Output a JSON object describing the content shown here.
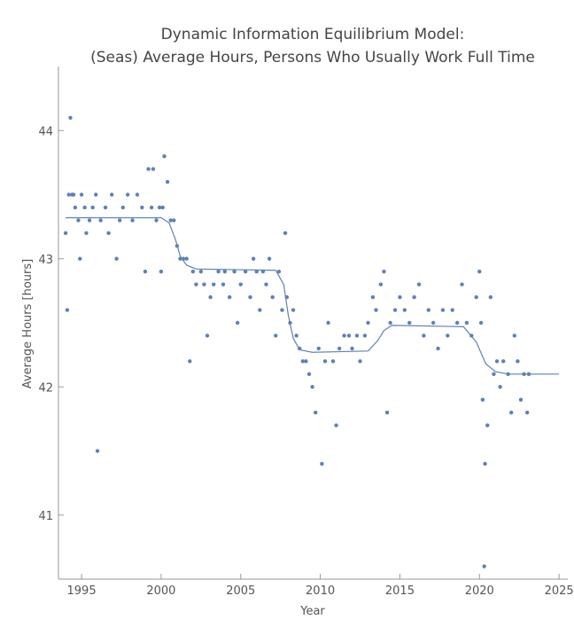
{
  "chart_data": {
    "type": "scatter",
    "title": "Dynamic Information Equilibrium Model:",
    "subtitle": "(Seas) Average Hours, Persons Who Usually Work Full Time",
    "x_label": "Year",
    "y_label": "Average Hours [hours]",
    "xlim": [
      1993.55,
      2025.55
    ],
    "ylim": [
      40.5,
      44.5
    ],
    "xticks": [
      1995,
      2000,
      2005,
      2010,
      2015,
      2020,
      2025
    ],
    "yticks": [
      41,
      42,
      43,
      44
    ],
    "series": [
      {
        "type": "scatter",
        "color": "#5e81b5",
        "x": [
          1994.0,
          1994.1,
          1994.2,
          1994.3,
          1994.4,
          1994.5,
          1994.6,
          1994.8,
          1994.9,
          1995.0,
          1995.2,
          1995.3,
          1995.5,
          1995.7,
          1995.9,
          1996.0,
          1996.2,
          1996.5,
          1996.7,
          1996.9,
          1997.2,
          1997.4,
          1997.6,
          1997.9,
          1998.2,
          1998.5,
          1998.8,
          1999.0,
          1999.2,
          1999.4,
          1999.5,
          1999.7,
          1999.9,
          2000.0,
          2000.1,
          2000.2,
          2000.4,
          2000.6,
          2000.8,
          2001.0,
          2001.2,
          2001.4,
          2001.6,
          2001.8,
          2002.0,
          2002.2,
          2002.5,
          2002.7,
          2002.9,
          2003.1,
          2003.3,
          2003.6,
          2003.9,
          2004.0,
          2004.3,
          2004.6,
          2004.8,
          2005.0,
          2005.3,
          2005.6,
          2005.8,
          2006.0,
          2006.2,
          2006.4,
          2006.6,
          2006.8,
          2007.0,
          2007.2,
          2007.4,
          2007.6,
          2007.8,
          2007.9,
          2008.1,
          2008.3,
          2008.5,
          2008.7,
          2008.9,
          2009.1,
          2009.3,
          2009.5,
          2009.7,
          2009.9,
          2010.1,
          2010.3,
          2010.5,
          2010.8,
          2011.0,
          2011.2,
          2011.5,
          2011.8,
          2012.0,
          2012.3,
          2012.5,
          2012.8,
          2013.0,
          2013.3,
          2013.5,
          2013.8,
          2014.0,
          2014.2,
          2014.4,
          2014.7,
          2015.0,
          2015.3,
          2015.6,
          2015.9,
          2016.2,
          2016.5,
          2016.8,
          2017.1,
          2017.4,
          2017.7,
          2018.0,
          2018.3,
          2018.6,
          2018.9,
          2019.2,
          2019.5,
          2019.8,
          2020.0,
          2020.1,
          2020.2,
          2020.3,
          2020.35,
          2020.5,
          2020.7,
          2020.9,
          2021.1,
          2021.3,
          2021.5,
          2021.8,
          2022.0,
          2022.2,
          2022.4,
          2022.6,
          2022.8,
          2023.0,
          2023.1
        ],
        "values": [
          43.2,
          42.6,
          43.5,
          44.1,
          43.5,
          43.5,
          43.4,
          43.3,
          43.0,
          43.5,
          43.4,
          43.2,
          43.3,
          43.4,
          43.5,
          41.5,
          43.3,
          43.4,
          43.2,
          43.5,
          43.0,
          43.3,
          43.4,
          43.5,
          43.3,
          43.5,
          43.4,
          42.9,
          43.7,
          43.4,
          43.7,
          43.3,
          43.4,
          42.9,
          43.4,
          43.8,
          43.6,
          43.3,
          43.3,
          43.1,
          43.0,
          43.0,
          43.0,
          42.2,
          42.9,
          42.8,
          42.9,
          42.8,
          42.4,
          42.7,
          42.8,
          42.9,
          42.8,
          42.9,
          42.7,
          42.9,
          42.5,
          42.8,
          42.9,
          42.7,
          43.0,
          42.9,
          42.6,
          42.9,
          42.8,
          43.0,
          42.7,
          42.4,
          42.9,
          42.6,
          43.2,
          42.7,
          42.5,
          42.6,
          42.4,
          42.3,
          42.2,
          42.2,
          42.1,
          42.0,
          41.8,
          42.3,
          41.4,
          42.2,
          42.5,
          42.2,
          41.7,
          42.3,
          42.4,
          42.4,
          42.3,
          42.4,
          42.2,
          42.4,
          42.5,
          42.7,
          42.6,
          42.8,
          42.9,
          41.8,
          42.5,
          42.6,
          42.7,
          42.6,
          42.5,
          42.7,
          42.8,
          42.4,
          42.6,
          42.5,
          42.3,
          42.6,
          42.4,
          42.6,
          42.5,
          42.8,
          42.5,
          42.4,
          42.7,
          42.9,
          42.5,
          41.9,
          40.6,
          41.4,
          41.7,
          42.7,
          42.1,
          42.2,
          42.0,
          42.2,
          42.1,
          41.8,
          42.4,
          42.2,
          41.9,
          42.1,
          41.8,
          42.1
        ]
      },
      {
        "type": "line",
        "color": "#5e81b5",
        "x": [
          1994.0,
          2000.0,
          2000.5,
          2000.9,
          2001.2,
          2001.6,
          2002.2,
          2007.2,
          2007.7,
          2008.0,
          2008.3,
          2008.7,
          2009.5,
          2013.0,
          2013.6,
          2014.0,
          2014.5,
          2019.0,
          2019.8,
          2020.4,
          2021.0,
          2021.8,
          2025.0
        ],
        "values": [
          43.32,
          43.32,
          43.28,
          43.15,
          43.02,
          42.95,
          42.92,
          42.91,
          42.8,
          42.55,
          42.38,
          42.29,
          42.27,
          42.28,
          42.36,
          42.44,
          42.48,
          42.47,
          42.35,
          42.18,
          42.12,
          42.1,
          42.1
        ]
      }
    ]
  }
}
